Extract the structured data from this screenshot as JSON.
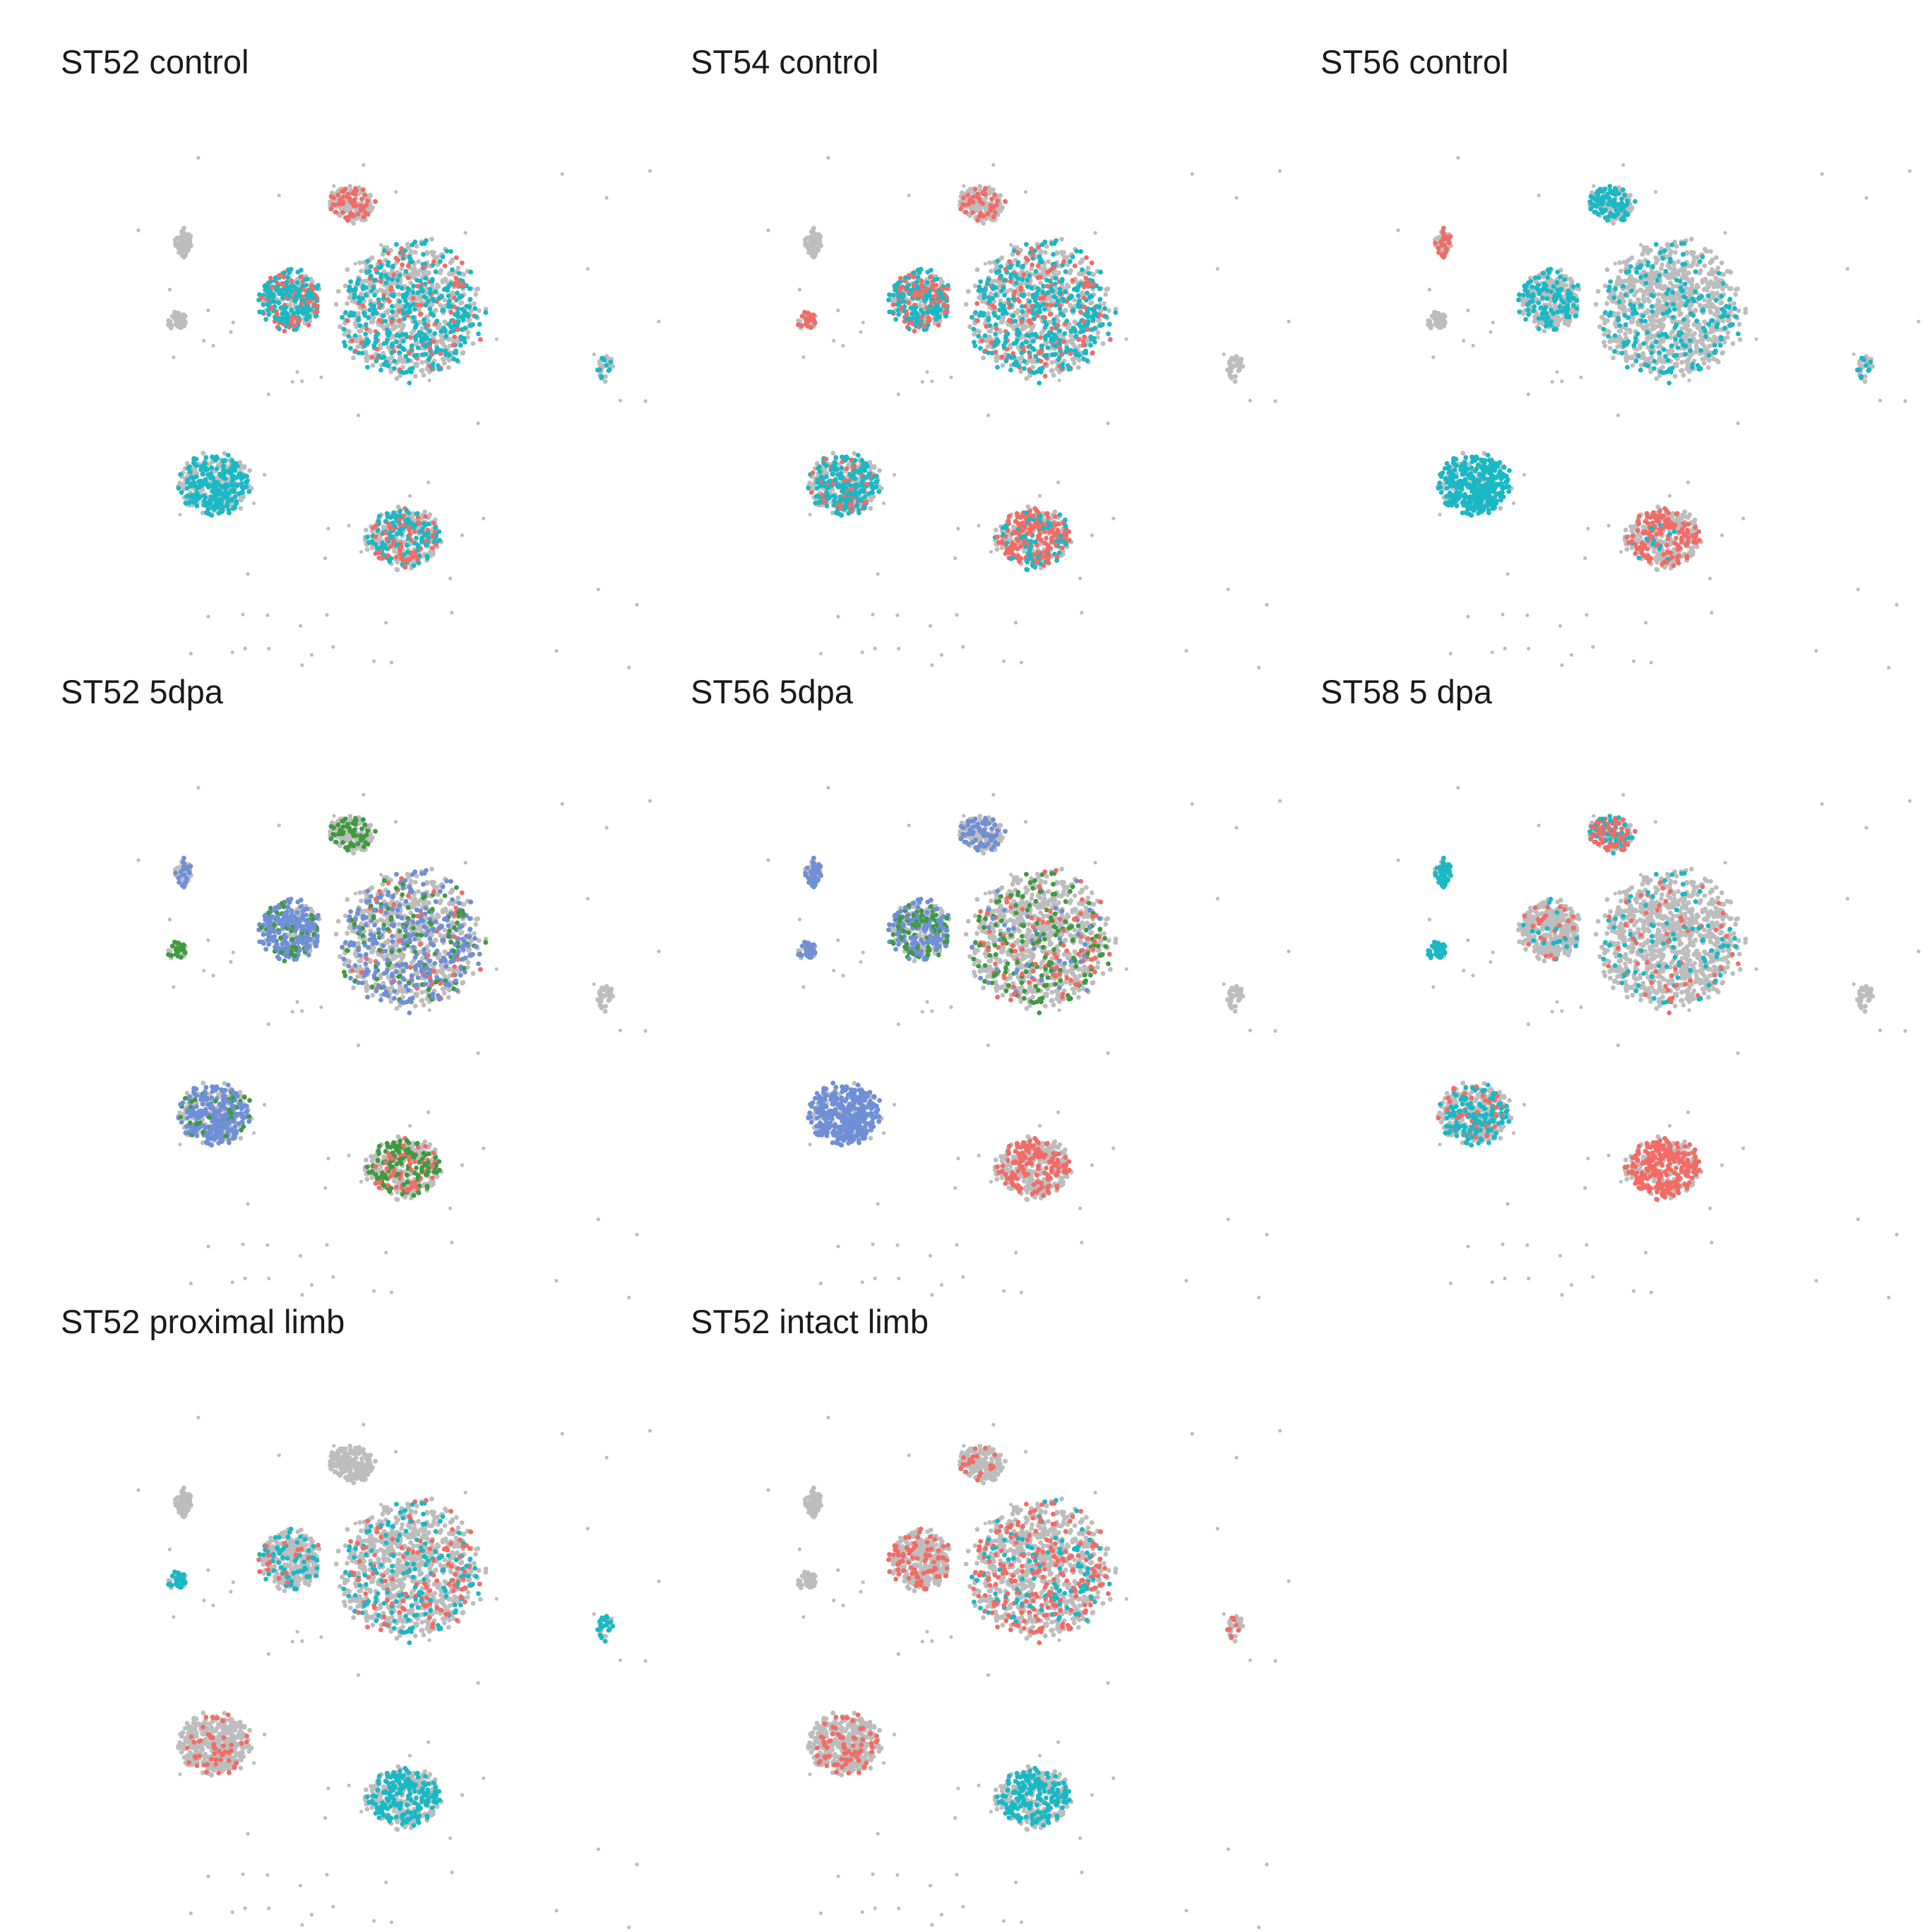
{
  "figure": {
    "panels": [
      {
        "id": "st52-control",
        "title": "ST52 control",
        "colored_groups": [
          "b",
          "a"
        ]
      },
      {
        "id": "st54-control",
        "title": "ST54 control",
        "colored_groups": [
          "b",
          "a"
        ]
      },
      {
        "id": "st56-control",
        "title": "ST56 control",
        "colored_groups": [
          "b",
          "a"
        ]
      },
      {
        "id": "st52-5dpa",
        "title": "ST52 5dpa",
        "colored_groups": [
          "c",
          "d",
          "a"
        ]
      },
      {
        "id": "st56-5dpa",
        "title": "ST56 5dpa",
        "colored_groups": [
          "c",
          "d",
          "a"
        ]
      },
      {
        "id": "st58-5dpa",
        "title": "ST58 5 dpa",
        "colored_groups": [
          "b",
          "a"
        ]
      },
      {
        "id": "st52-proximal-limb",
        "title": "ST52 proximal limb",
        "colored_groups": [
          "b",
          "a"
        ]
      },
      {
        "id": "st52-intact-limb",
        "title": "ST52 intact limb",
        "colored_groups": [
          "b",
          "a"
        ]
      }
    ]
  },
  "chart_data": {
    "type": "scatter",
    "layout": "small multiples, 3 columns",
    "axes": "hidden",
    "grid": false,
    "legend": "none",
    "background_points_color": "#bdbdbd",
    "group_colors": {
      "a": "#f26b65",
      "b": "#19b8c4",
      "c": "#6f8fd6",
      "d": "#3f9a3f"
    },
    "clusters": [
      {
        "id": "c1",
        "cx": 0.555,
        "cy": 0.36,
        "rx": 0.11,
        "ry": 0.115,
        "share": 0.3
      },
      {
        "id": "c2",
        "cx": 0.365,
        "cy": 0.345,
        "rx": 0.048,
        "ry": 0.05,
        "share": 0.1
      },
      {
        "id": "c3",
        "cx": 0.245,
        "cy": 0.67,
        "rx": 0.055,
        "ry": 0.052,
        "share": 0.13
      },
      {
        "id": "c4",
        "cx": 0.545,
        "cy": 0.765,
        "rx": 0.058,
        "ry": 0.05,
        "share": 0.12
      },
      {
        "id": "c5",
        "cx": 0.46,
        "cy": 0.175,
        "rx": 0.035,
        "ry": 0.03,
        "share": 0.05
      },
      {
        "id": "c6",
        "cx": 0.195,
        "cy": 0.245,
        "rx": 0.013,
        "ry": 0.025,
        "share": 0.02
      },
      {
        "id": "c7",
        "cx": 0.185,
        "cy": 0.38,
        "rx": 0.015,
        "ry": 0.015,
        "share": 0.015
      },
      {
        "id": "c8",
        "cx": 0.865,
        "cy": 0.465,
        "rx": 0.013,
        "ry": 0.022,
        "share": 0.01
      }
    ],
    "panel_colored_cells": [
      [
        {
          "cluster": "c1",
          "group": "b",
          "fraction": 0.35
        },
        {
          "cluster": "c1",
          "group": "a",
          "fraction": 0.1
        },
        {
          "cluster": "c2",
          "group": "b",
          "fraction": 0.55
        },
        {
          "cluster": "c2",
          "group": "a",
          "fraction": 0.15
        },
        {
          "cluster": "c3",
          "group": "b",
          "fraction": 0.5
        },
        {
          "cluster": "c4",
          "group": "b",
          "fraction": 0.3
        },
        {
          "cluster": "c4",
          "group": "a",
          "fraction": 0.2
        },
        {
          "cluster": "c5",
          "group": "a",
          "fraction": 0.3
        },
        {
          "cluster": "c8",
          "group": "b",
          "fraction": 0.3
        }
      ],
      [
        {
          "cluster": "c1",
          "group": "b",
          "fraction": 0.35
        },
        {
          "cluster": "c1",
          "group": "a",
          "fraction": 0.15
        },
        {
          "cluster": "c2",
          "group": "b",
          "fraction": 0.45
        },
        {
          "cluster": "c2",
          "group": "a",
          "fraction": 0.2
        },
        {
          "cluster": "c3",
          "group": "b",
          "fraction": 0.45
        },
        {
          "cluster": "c3",
          "group": "a",
          "fraction": 0.1
        },
        {
          "cluster": "c4",
          "group": "a",
          "fraction": 0.45
        },
        {
          "cluster": "c4",
          "group": "b",
          "fraction": 0.2
        },
        {
          "cluster": "c5",
          "group": "a",
          "fraction": 0.2
        },
        {
          "cluster": "c7",
          "group": "a",
          "fraction": 0.3
        }
      ],
      [
        {
          "cluster": "c1",
          "group": "b",
          "fraction": 0.2
        },
        {
          "cluster": "c2",
          "group": "b",
          "fraction": 0.35
        },
        {
          "cluster": "c3",
          "group": "b",
          "fraction": 0.8
        },
        {
          "cluster": "c4",
          "group": "a",
          "fraction": 0.35
        },
        {
          "cluster": "c4",
          "group": "b",
          "fraction": 0.05
        },
        {
          "cluster": "c5",
          "group": "b",
          "fraction": 0.5
        },
        {
          "cluster": "c6",
          "group": "a",
          "fraction": 0.3
        },
        {
          "cluster": "c8",
          "group": "b",
          "fraction": 0.3
        }
      ],
      [
        {
          "cluster": "c1",
          "group": "c",
          "fraction": 0.3
        },
        {
          "cluster": "c1",
          "group": "d",
          "fraction": 0.1
        },
        {
          "cluster": "c1",
          "group": "a",
          "fraction": 0.05
        },
        {
          "cluster": "c2",
          "group": "c",
          "fraction": 0.6
        },
        {
          "cluster": "c2",
          "group": "d",
          "fraction": 0.15
        },
        {
          "cluster": "c3",
          "group": "c",
          "fraction": 0.55
        },
        {
          "cluster": "c3",
          "group": "d",
          "fraction": 0.1
        },
        {
          "cluster": "c4",
          "group": "d",
          "fraction": 0.3
        },
        {
          "cluster": "c4",
          "group": "a",
          "fraction": 0.15
        },
        {
          "cluster": "c5",
          "group": "d",
          "fraction": 0.3
        },
        {
          "cluster": "c6",
          "group": "c",
          "fraction": 0.3
        },
        {
          "cluster": "c7",
          "group": "d",
          "fraction": 0.3
        }
      ],
      [
        {
          "cluster": "c1",
          "group": "d",
          "fraction": 0.15
        },
        {
          "cluster": "c1",
          "group": "a",
          "fraction": 0.1
        },
        {
          "cluster": "c1",
          "group": "c",
          "fraction": 0.05
        },
        {
          "cluster": "c2",
          "group": "c",
          "fraction": 0.4
        },
        {
          "cluster": "c2",
          "group": "d",
          "fraction": 0.2
        },
        {
          "cluster": "c3",
          "group": "c",
          "fraction": 0.85
        },
        {
          "cluster": "c4",
          "group": "a",
          "fraction": 0.35
        },
        {
          "cluster": "c5",
          "group": "c",
          "fraction": 0.35
        },
        {
          "cluster": "c6",
          "group": "c",
          "fraction": 0.6
        },
        {
          "cluster": "c7",
          "group": "c",
          "fraction": 0.5
        }
      ],
      [
        {
          "cluster": "c1",
          "group": "b",
          "fraction": 0.08
        },
        {
          "cluster": "c1",
          "group": "a",
          "fraction": 0.06
        },
        {
          "cluster": "c2",
          "group": "a",
          "fraction": 0.1
        },
        {
          "cluster": "c2",
          "group": "b",
          "fraction": 0.05
        },
        {
          "cluster": "c3",
          "group": "b",
          "fraction": 0.3
        },
        {
          "cluster": "c3",
          "group": "a",
          "fraction": 0.1
        },
        {
          "cluster": "c4",
          "group": "a",
          "fraction": 0.6
        },
        {
          "cluster": "c5",
          "group": "a",
          "fraction": 0.4
        },
        {
          "cluster": "c5",
          "group": "b",
          "fraction": 0.3
        },
        {
          "cluster": "c6",
          "group": "b",
          "fraction": 0.7
        },
        {
          "cluster": "c7",
          "group": "b",
          "fraction": 0.7
        }
      ],
      [
        {
          "cluster": "c1",
          "group": "b",
          "fraction": 0.15
        },
        {
          "cluster": "c1",
          "group": "a",
          "fraction": 0.12
        },
        {
          "cluster": "c2",
          "group": "b",
          "fraction": 0.2
        },
        {
          "cluster": "c2",
          "group": "a",
          "fraction": 0.05
        },
        {
          "cluster": "c3",
          "group": "a",
          "fraction": 0.1
        },
        {
          "cluster": "c4",
          "group": "b",
          "fraction": 0.45
        },
        {
          "cluster": "c7",
          "group": "b",
          "fraction": 0.4
        },
        {
          "cluster": "c8",
          "group": "b",
          "fraction": 0.6
        }
      ],
      [
        {
          "cluster": "c1",
          "group": "a",
          "fraction": 0.22
        },
        {
          "cluster": "c1",
          "group": "b",
          "fraction": 0.1
        },
        {
          "cluster": "c2",
          "group": "a",
          "fraction": 0.25
        },
        {
          "cluster": "c3",
          "group": "a",
          "fraction": 0.15
        },
        {
          "cluster": "c4",
          "group": "b",
          "fraction": 0.45
        },
        {
          "cluster": "c5",
          "group": "a",
          "fraction": 0.1
        },
        {
          "cluster": "c8",
          "group": "a",
          "fraction": 0.2
        }
      ]
    ]
  }
}
